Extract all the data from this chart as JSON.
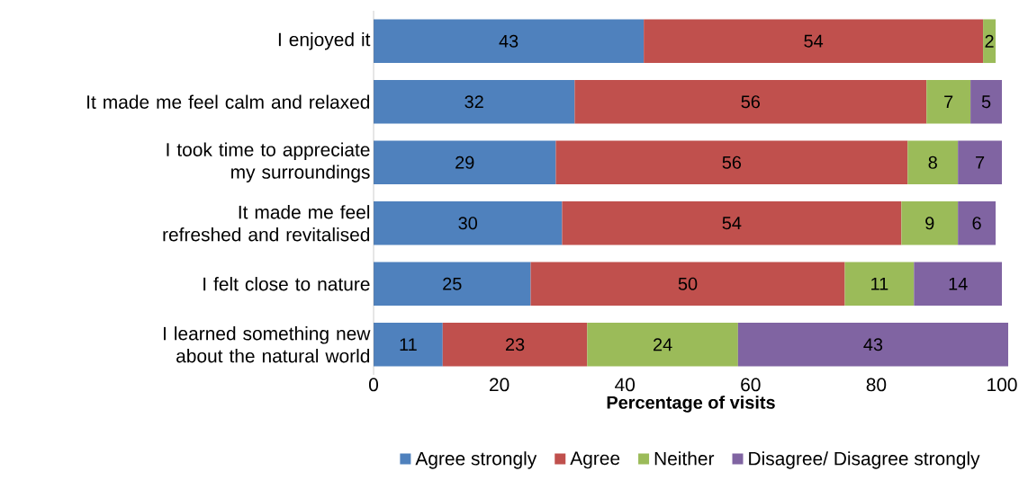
{
  "chart_data": {
    "type": "bar",
    "orientation": "horizontal",
    "stacked": true,
    "categories": [
      "I enjoyed it",
      "It made me feel calm and relaxed",
      "I took time to appreciate my surroundings",
      "It made me feel refreshed and revitalised",
      "I felt close to nature",
      "I learned something new about the natural world"
    ],
    "series": [
      {
        "name": "Agree strongly",
        "color": "#4f81bd",
        "values": [
          43,
          32,
          29,
          30,
          25,
          11
        ]
      },
      {
        "name": "Agree",
        "color": "#c0504d",
        "values": [
          54,
          56,
          56,
          54,
          50,
          23
        ]
      },
      {
        "name": "Neither",
        "color": "#9bbb59",
        "values": [
          2,
          7,
          8,
          9,
          11,
          24
        ]
      },
      {
        "name": "Disagree/ Disagree strongly",
        "color": "#8064a2",
        "values": [
          null,
          5,
          7,
          6,
          14,
          43
        ]
      }
    ],
    "xlim": [
      0,
      101
    ],
    "xticks": [
      0,
      20,
      40,
      60,
      80,
      100
    ],
    "xlabel": "Percentage of visits",
    "legend": "bottom",
    "data_labels": true
  }
}
